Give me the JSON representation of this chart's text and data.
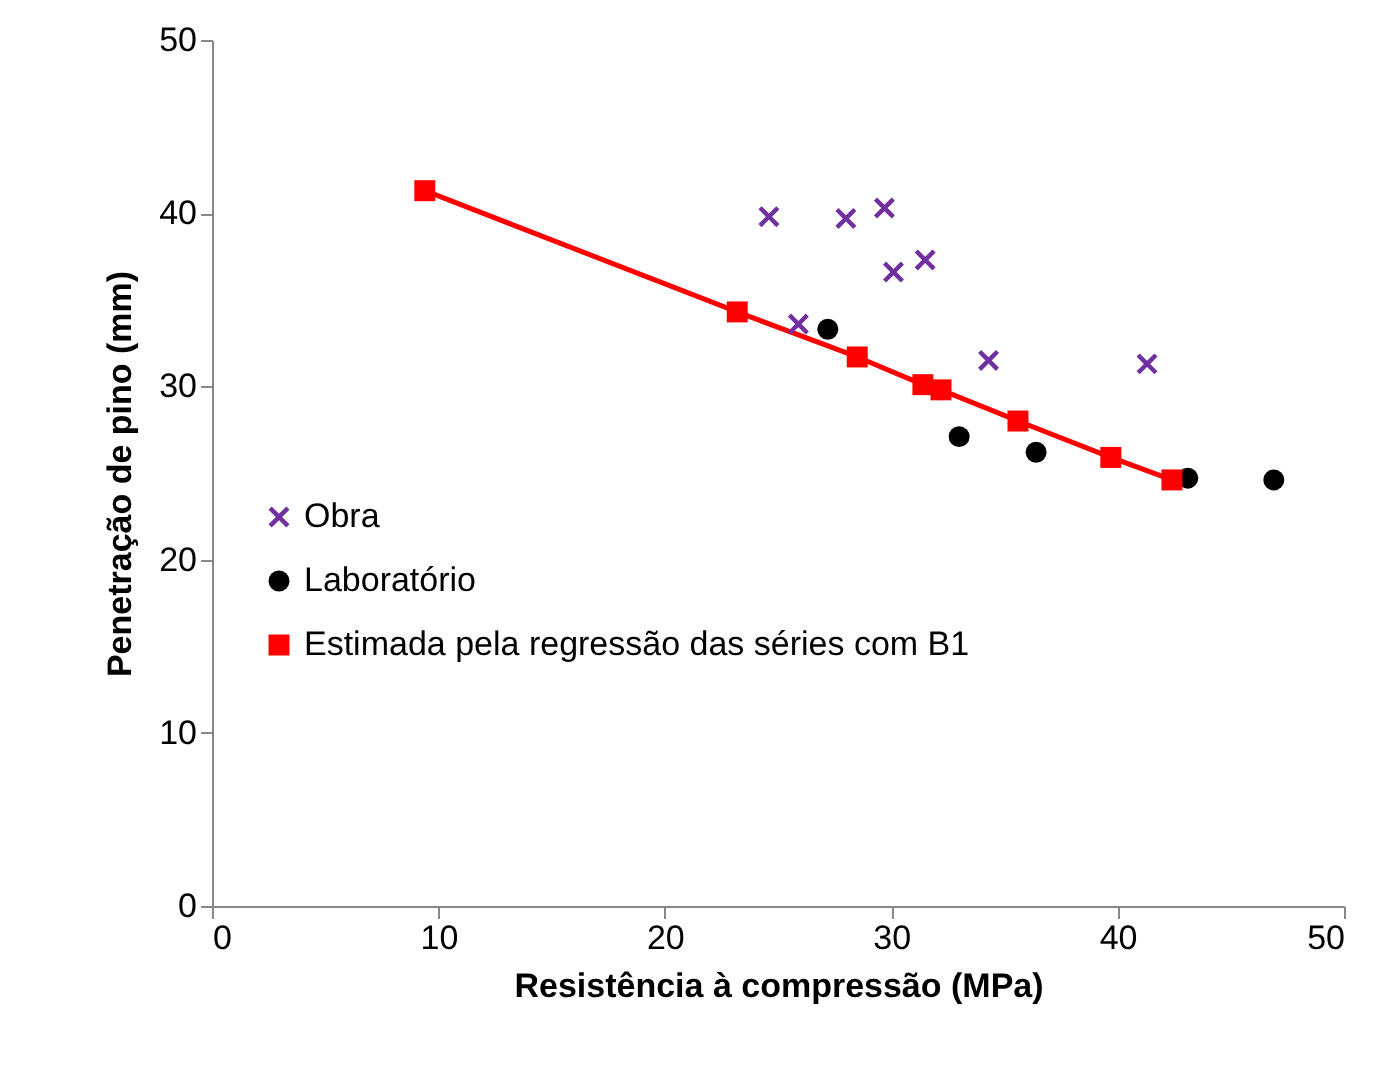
{
  "chart_data": {
    "type": "scatter",
    "xlabel": "Resistência à compressão (MPa)",
    "ylabel": "Penetração de pino (mm)",
    "xlim": [
      0,
      50
    ],
    "xticks": [
      0,
      10,
      20,
      30,
      40,
      50
    ],
    "ylim": [
      0,
      50
    ],
    "yticks": [
      0,
      10,
      20,
      30,
      40,
      50
    ],
    "grid": false,
    "legend": "left",
    "series": [
      {
        "name": "Obra",
        "type": "scatter",
        "marker": "cross",
        "color": "#7030a0",
        "x": [
          24.6,
          25.9,
          28.0,
          29.7,
          30.1,
          31.5,
          34.3,
          41.3
        ],
        "values": [
          39.8,
          33.6,
          39.7,
          40.3,
          36.6,
          37.3,
          31.5,
          31.3
        ]
      },
      {
        "name": "Laboratório",
        "type": "scatter",
        "marker": "circle",
        "color": "#000000",
        "x": [
          27.2,
          33.0,
          36.4,
          43.1,
          46.9
        ],
        "values": [
          33.3,
          27.1,
          26.2,
          24.7,
          24.6
        ]
      },
      {
        "name": "Estimada pela regressão das séries com B1",
        "type": "line",
        "marker": "square",
        "color": "#ff0000",
        "x": [
          9.4,
          23.2,
          28.5,
          31.4,
          32.2,
          35.6,
          39.7,
          42.4
        ],
        "values": [
          41.3,
          34.3,
          31.7,
          30.1,
          29.8,
          28.0,
          25.9,
          24.6
        ]
      }
    ]
  }
}
